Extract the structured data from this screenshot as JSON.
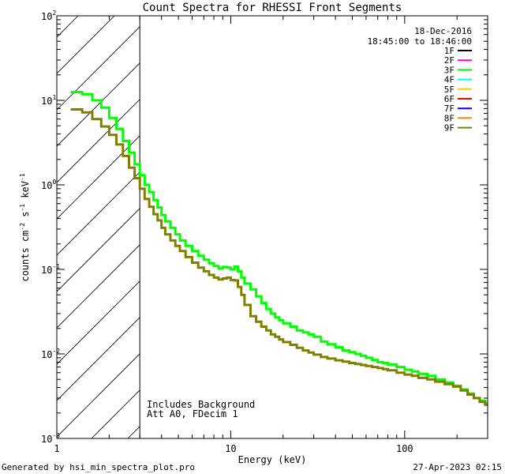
{
  "chart_data": {
    "type": "line",
    "title": "Count Spectra for RHESSI Front Segments",
    "xlabel": "Energy (keV)",
    "ylabel_parts": {
      "base": "counts cm",
      "exp1": "-2",
      "mid": " s",
      "exp2": "-1",
      "tail": " keV",
      "exp3": "-1"
    },
    "xscale": "log",
    "yscale": "log",
    "xlim": [
      1,
      300
    ],
    "ylim": [
      0.001,
      100
    ],
    "x_ticks": [
      {
        "value": 10,
        "label": "10"
      },
      {
        "value": 100,
        "label": "100"
      }
    ],
    "x_min_label": "1",
    "y_ticks": [
      {
        "value": 0.001,
        "base": "10",
        "exp": "-3"
      },
      {
        "value": 0.01,
        "base": "10",
        "exp": "-2"
      },
      {
        "value": 0.1,
        "base": "10",
        "exp": "-1"
      },
      {
        "value": 1,
        "base": "10",
        "exp": "0"
      },
      {
        "value": 10,
        "base": "10",
        "exp": "1"
      },
      {
        "value": 100,
        "base": "10",
        "exp": "2"
      }
    ],
    "hatched_region_keV": [
      1,
      3
    ],
    "date": "18-Dec-2016",
    "time_range": "18:45:00 to 18:46:00",
    "legend": [
      {
        "label": "1F",
        "color": "#000000"
      },
      {
        "label": "2F",
        "color": "#ff00ff"
      },
      {
        "label": "3F",
        "color": "#00ff00"
      },
      {
        "label": "4F",
        "color": "#00ffff"
      },
      {
        "label": "5F",
        "color": "#ffcc00"
      },
      {
        "label": "6F",
        "color": "#ff0000"
      },
      {
        "label": "7F",
        "color": "#0000ff"
      },
      {
        "label": "8F",
        "color": "#ff8000"
      },
      {
        "label": "9F",
        "color": "#808000"
      }
    ],
    "annotations": [
      "Includes Background",
      "Att A0, FDecim 1"
    ],
    "series": [
      {
        "name": "3F",
        "color": "#00ff00",
        "points": [
          [
            1.2,
            12.5
          ],
          [
            1.4,
            11.8
          ],
          [
            1.6,
            10.0
          ],
          [
            1.8,
            8.2
          ],
          [
            2.0,
            6.2
          ],
          [
            2.2,
            4.6
          ],
          [
            2.4,
            3.3
          ],
          [
            2.6,
            2.4
          ],
          [
            2.8,
            1.75
          ],
          [
            3.0,
            1.3
          ],
          [
            3.2,
            1.0
          ],
          [
            3.4,
            0.82
          ],
          [
            3.6,
            0.66
          ],
          [
            3.8,
            0.54
          ],
          [
            4.0,
            0.44
          ],
          [
            4.2,
            0.37
          ],
          [
            4.5,
            0.31
          ],
          [
            4.8,
            0.26
          ],
          [
            5.1,
            0.22
          ],
          [
            5.5,
            0.19
          ],
          [
            6.0,
            0.165
          ],
          [
            6.5,
            0.145
          ],
          [
            7.0,
            0.13
          ],
          [
            7.5,
            0.118
          ],
          [
            8.0,
            0.11
          ],
          [
            8.5,
            0.103
          ],
          [
            9.0,
            0.107
          ],
          [
            9.5,
            0.105
          ],
          [
            10.0,
            0.1
          ],
          [
            10.5,
            0.108
          ],
          [
            11.0,
            0.095
          ],
          [
            11.5,
            0.08
          ],
          [
            12.0,
            0.068
          ],
          [
            13,
            0.058
          ],
          [
            14,
            0.048
          ],
          [
            15,
            0.04
          ],
          [
            16,
            0.034
          ],
          [
            17,
            0.03
          ],
          [
            18,
            0.027
          ],
          [
            19,
            0.025
          ],
          [
            20,
            0.023
          ],
          [
            22,
            0.021
          ],
          [
            24,
            0.019
          ],
          [
            26,
            0.018
          ],
          [
            28,
            0.017
          ],
          [
            30,
            0.016
          ],
          [
            33,
            0.014
          ],
          [
            36,
            0.013
          ],
          [
            40,
            0.012
          ],
          [
            44,
            0.011
          ],
          [
            48,
            0.0105
          ],
          [
            52,
            0.01
          ],
          [
            56,
            0.0095
          ],
          [
            60,
            0.009
          ],
          [
            65,
            0.0085
          ],
          [
            70,
            0.008
          ],
          [
            75,
            0.0078
          ],
          [
            80,
            0.0075
          ],
          [
            90,
            0.007
          ],
          [
            100,
            0.0065
          ],
          [
            110,
            0.0062
          ],
          [
            120,
            0.0058
          ],
          [
            135,
            0.0055
          ],
          [
            150,
            0.005
          ],
          [
            170,
            0.0046
          ],
          [
            190,
            0.0042
          ],
          [
            210,
            0.0038
          ],
          [
            230,
            0.0034
          ],
          [
            250,
            0.003
          ],
          [
            270,
            0.0028
          ],
          [
            290,
            0.0026
          ]
        ]
      },
      {
        "name": "9F",
        "color": "#808000",
        "points": [
          [
            1.2,
            7.8
          ],
          [
            1.4,
            7.2
          ],
          [
            1.6,
            6.0
          ],
          [
            1.8,
            4.9
          ],
          [
            2.0,
            3.9
          ],
          [
            2.2,
            3.0
          ],
          [
            2.4,
            2.2
          ],
          [
            2.6,
            1.6
          ],
          [
            2.8,
            1.2
          ],
          [
            3.0,
            0.9
          ],
          [
            3.2,
            0.68
          ],
          [
            3.4,
            0.55
          ],
          [
            3.6,
            0.45
          ],
          [
            3.8,
            0.38
          ],
          [
            4.0,
            0.31
          ],
          [
            4.2,
            0.26
          ],
          [
            4.5,
            0.22
          ],
          [
            4.8,
            0.19
          ],
          [
            5.1,
            0.165
          ],
          [
            5.5,
            0.14
          ],
          [
            6.0,
            0.12
          ],
          [
            6.5,
            0.105
          ],
          [
            7.0,
            0.095
          ],
          [
            7.5,
            0.086
          ],
          [
            8.0,
            0.08
          ],
          [
            8.5,
            0.076
          ],
          [
            9.0,
            0.078
          ],
          [
            9.5,
            0.08
          ],
          [
            10.0,
            0.075
          ],
          [
            10.5,
            0.074
          ],
          [
            11.0,
            0.062
          ],
          [
            11.5,
            0.05
          ],
          [
            12.0,
            0.038
          ],
          [
            13,
            0.028
          ],
          [
            14,
            0.024
          ],
          [
            15,
            0.021
          ],
          [
            16,
            0.019
          ],
          [
            17,
            0.017
          ],
          [
            18,
            0.016
          ],
          [
            19,
            0.0148
          ],
          [
            20,
            0.0138
          ],
          [
            22,
            0.0128
          ],
          [
            24,
            0.0118
          ],
          [
            26,
            0.011
          ],
          [
            28,
            0.0104
          ],
          [
            30,
            0.0098
          ],
          [
            33,
            0.0092
          ],
          [
            36,
            0.0088
          ],
          [
            40,
            0.0084
          ],
          [
            44,
            0.0081
          ],
          [
            48,
            0.0078
          ],
          [
            52,
            0.0076
          ],
          [
            56,
            0.0074
          ],
          [
            60,
            0.0072
          ],
          [
            65,
            0.007
          ],
          [
            70,
            0.0068
          ],
          [
            75,
            0.0066
          ],
          [
            80,
            0.0064
          ],
          [
            90,
            0.006
          ],
          [
            100,
            0.0057
          ],
          [
            110,
            0.0055
          ],
          [
            120,
            0.0052
          ],
          [
            135,
            0.005
          ],
          [
            150,
            0.0047
          ],
          [
            170,
            0.0044
          ],
          [
            190,
            0.0041
          ],
          [
            210,
            0.0037
          ],
          [
            230,
            0.0033
          ],
          [
            250,
            0.003
          ],
          [
            270,
            0.0027
          ],
          [
            290,
            0.0025
          ]
        ]
      }
    ]
  },
  "footer": {
    "generated_by": "Generated by hsi_min_spectra_plot.pro",
    "timestamp": "27-Apr-2023 02:15"
  }
}
